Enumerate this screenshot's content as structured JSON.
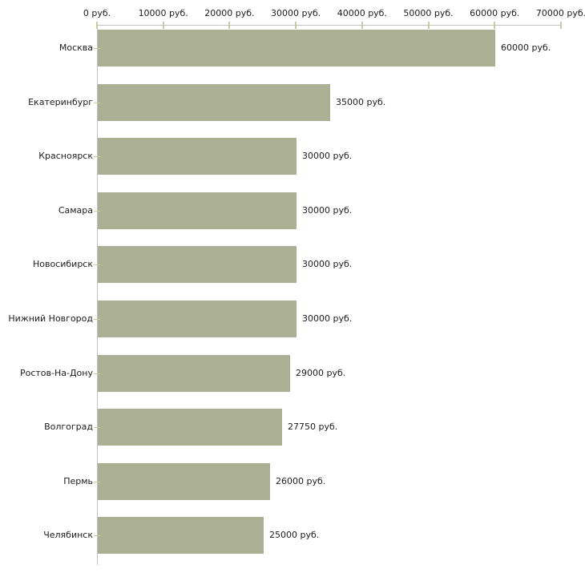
{
  "chart_data": {
    "type": "bar",
    "orientation": "horizontal",
    "title": "",
    "xlabel": "",
    "ylabel": "",
    "categories": [
      "Москва",
      "Екатеринбург",
      "Красноярск",
      "Самара",
      "Новосибирск",
      "Нижний Новгород",
      "Ростов-На-Дону",
      "Волгоград",
      "Пермь",
      "Челябинск"
    ],
    "values": [
      60000,
      35000,
      30000,
      30000,
      30000,
      30000,
      29000,
      27750,
      26000,
      25000
    ],
    "value_labels": [
      "60000 руб.",
      "35000 руб.",
      "30000 руб.",
      "30000 руб.",
      "30000 руб.",
      "30000 руб.",
      "29000 руб.",
      "27750 руб.",
      "26000 руб.",
      "25000 руб."
    ],
    "x_axis": {
      "position": "top",
      "xlim": [
        0,
        70000
      ],
      "ticks": [
        0,
        10000,
        20000,
        30000,
        40000,
        50000,
        60000,
        70000
      ],
      "tick_labels": [
        "0 руб.",
        "10000 руб.",
        "20000 руб.",
        "30000 руб.",
        "40000 руб.",
        "50000 руб.",
        "60000 руб.",
        "70000 руб."
      ]
    },
    "grid": false,
    "legend": false,
    "colors": {
      "bar": "#abb094",
      "axis_line": "#c3c3c3",
      "tick_mark": "#c9c9a3",
      "text": "#1c1c1c",
      "background": "#ffffff"
    }
  }
}
